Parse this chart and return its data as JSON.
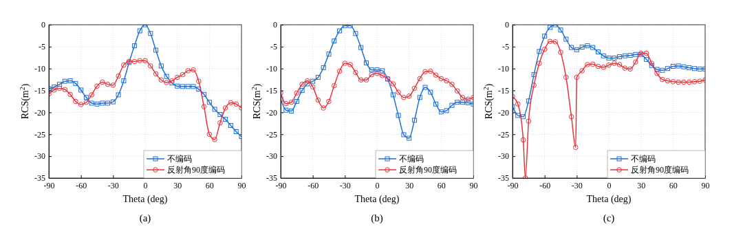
{
  "chart_data": [
    {
      "type": "line",
      "xlabel": "Theta (deg)",
      "ylabel": "RCS(m$^{2}$)",
      "annotations": [
        "(a)"
      ],
      "xlim": [
        -90,
        90
      ],
      "xticks": [
        -90,
        -60,
        -30,
        0,
        30,
        60,
        90
      ],
      "ylim": [
        -35,
        0
      ],
      "yticks": [
        -35,
        -30,
        -25,
        -20,
        -15,
        -10,
        -5,
        0
      ],
      "grid": true,
      "legend": "bottom right",
      "line_style": "solid",
      "x": [
        -90,
        -85,
        -80,
        -75,
        -70,
        -65,
        -60,
        -55,
        -50,
        -45,
        -40,
        -35,
        -30,
        -25,
        -20,
        -15,
        -10,
        -5,
        0,
        5,
        10,
        15,
        20,
        25,
        30,
        35,
        40,
        45,
        50,
        55,
        60,
        65,
        70,
        75,
        80,
        85,
        90
      ],
      "series": [
        {
          "name": "不编码",
          "color": "#1f6fd6",
          "marker": "square",
          "values": [
            -14.6,
            -14.2,
            -13.6,
            -12.9,
            -12.8,
            -13.4,
            -14.9,
            -16.6,
            -17.9,
            -18.1,
            -17.9,
            -17.9,
            -17.6,
            -16.0,
            -12.8,
            -8.6,
            -4.8,
            -1.4,
            0,
            -2.0,
            -5.8,
            -9.4,
            -11.8,
            -13.3,
            -14.0,
            -14.1,
            -14.1,
            -14.1,
            -14.7,
            -15.9,
            -17.7,
            -19.3,
            -20.5,
            -21.6,
            -23.0,
            -24.4,
            -25.5
          ]
        },
        {
          "name": "反射角90度编码",
          "color": "#e8323a",
          "marker": "circle",
          "values": [
            -15.8,
            -14.9,
            -14.5,
            -14.8,
            -15.9,
            -17.5,
            -18.2,
            -17.7,
            -16.0,
            -14.0,
            -13.1,
            -13.6,
            -13.8,
            -11.7,
            -9.2,
            -8.4,
            -8.4,
            -8.2,
            -8.2,
            -9.4,
            -11.2,
            -12.6,
            -13.2,
            -12.8,
            -12.0,
            -11.4,
            -10.5,
            -10.3,
            -12.9,
            -18.7,
            -25.0,
            -26.2,
            -22.4,
            -19.0,
            -17.8,
            -18.1,
            -19.0
          ]
        }
      ]
    },
    {
      "type": "line",
      "xlabel": "Theta (deg)",
      "ylabel": "RCS(m$^{2}$)",
      "annotations": [
        "(b)"
      ],
      "xlim": [
        -90,
        90
      ],
      "xticks": [
        -90,
        -60,
        -30,
        0,
        30,
        60,
        90
      ],
      "ylim": [
        -35,
        0
      ],
      "yticks": [
        -35,
        -30,
        -25,
        -20,
        -15,
        -10,
        -5,
        0
      ],
      "grid": true,
      "legend": "bottom right",
      "line_style": "solid",
      "x": [
        -90,
        -85,
        -80,
        -75,
        -70,
        -65,
        -60,
        -55,
        -50,
        -45,
        -40,
        -35,
        -30,
        -25,
        -20,
        -15,
        -10,
        -5,
        0,
        5,
        10,
        15,
        20,
        25,
        30,
        35,
        40,
        45,
        50,
        55,
        60,
        65,
        70,
        75,
        80,
        85,
        90
      ],
      "series": [
        {
          "name": "不编码",
          "color": "#1f6fd6",
          "marker": "square",
          "values": [
            -17.0,
            -19.5,
            -19.7,
            -17.5,
            -15.0,
            -13.5,
            -12.9,
            -12.0,
            -9.8,
            -6.7,
            -3.7,
            -1.4,
            -0.2,
            -0.2,
            -2.0,
            -5.2,
            -8.7,
            -10.3,
            -10.3,
            -10.5,
            -12.4,
            -16.0,
            -20.7,
            -25.1,
            -25.9,
            -21.8,
            -16.6,
            -14.3,
            -15.4,
            -18.1,
            -19.9,
            -19.6,
            -18.4,
            -17.7,
            -17.7,
            -17.8,
            -18.1
          ]
        },
        {
          "name": "反射角90度编码",
          "color": "#e8323a",
          "marker": "circle",
          "values": [
            -15.6,
            -18.0,
            -17.7,
            -15.6,
            -13.6,
            -12.8,
            -14.2,
            -17.2,
            -19.0,
            -17.5,
            -13.9,
            -10.6,
            -8.8,
            -9.1,
            -10.9,
            -12.6,
            -12.6,
            -11.4,
            -11.1,
            -11.6,
            -12.3,
            -13.5,
            -15.4,
            -16.6,
            -16.3,
            -14.5,
            -12.3,
            -10.7,
            -10.6,
            -11.5,
            -12.3,
            -12.8,
            -13.6,
            -15.1,
            -16.6,
            -17.0,
            -16.6
          ]
        }
      ]
    },
    {
      "type": "line",
      "xlabel": "Theta (deg)",
      "ylabel": "RCS(m$^{2}$)",
      "annotations": [
        "(c)"
      ],
      "xlim": [
        -90,
        90
      ],
      "xticks": [
        -90,
        -60,
        -30,
        0,
        30,
        60,
        90
      ],
      "ylim": [
        -35,
        0
      ],
      "yticks": [
        -35,
        -30,
        -25,
        -20,
        -15,
        -10,
        -5,
        0
      ],
      "grid": true,
      "legend": "bottom right",
      "line_style": "solid",
      "series": [
        {
          "name": "不编码",
          "color": "#1f6fd6",
          "marker": "square",
          "x": [
            -90,
            -85,
            -80,
            -75,
            -70,
            -65,
            -60,
            -55,
            -50,
            -45,
            -40,
            -35,
            -30,
            -25,
            -20,
            -15,
            -10,
            -5,
            0,
            5,
            10,
            15,
            20,
            25,
            30,
            35,
            40,
            45,
            50,
            55,
            60,
            65,
            70,
            75,
            80,
            85,
            90
          ],
          "values": [
            -18.7,
            -20.7,
            -21.0,
            -17.4,
            -11.4,
            -6.1,
            -2.6,
            -0.6,
            0,
            -1.2,
            -3.3,
            -5.2,
            -5.7,
            -5.1,
            -4.8,
            -5.2,
            -6.2,
            -7.1,
            -7.6,
            -7.6,
            -7.3,
            -7.1,
            -7.0,
            -6.8,
            -6.8,
            -7.9,
            -9.3,
            -10.2,
            -10.4,
            -10.0,
            -9.5,
            -9.4,
            -9.6,
            -9.8,
            -10.0,
            -10.1,
            -10.1
          ]
        },
        {
          "name": "反射角90度编码",
          "color": "#e8323a",
          "marker": "circle",
          "x": [
            -90,
            -85,
            -80,
            -78,
            -75,
            -70,
            -65,
            -60,
            -55,
            -50,
            -45,
            -40,
            -35,
            -31,
            -30,
            -25,
            -20,
            -15,
            -10,
            -5,
            0,
            5,
            10,
            15,
            20,
            25,
            30,
            35,
            40,
            45,
            50,
            55,
            60,
            65,
            70,
            75,
            80,
            85,
            90
          ],
          "values": [
            -16.4,
            -18.1,
            -26.3,
            -35,
            -22.0,
            -13.8,
            -8.8,
            -5.6,
            -3.8,
            -3.9,
            -6.3,
            -12.0,
            -21.0,
            -28.0,
            -12.0,
            -10.5,
            -9.1,
            -9.0,
            -9.5,
            -9.7,
            -9.2,
            -8.8,
            -9.1,
            -9.9,
            -10.1,
            -8.5,
            -6.5,
            -6.5,
            -8.8,
            -11.1,
            -12.5,
            -12.8,
            -13.0,
            -13.1,
            -13.1,
            -13.1,
            -13.0,
            -12.9,
            -12.6
          ]
        }
      ]
    }
  ]
}
